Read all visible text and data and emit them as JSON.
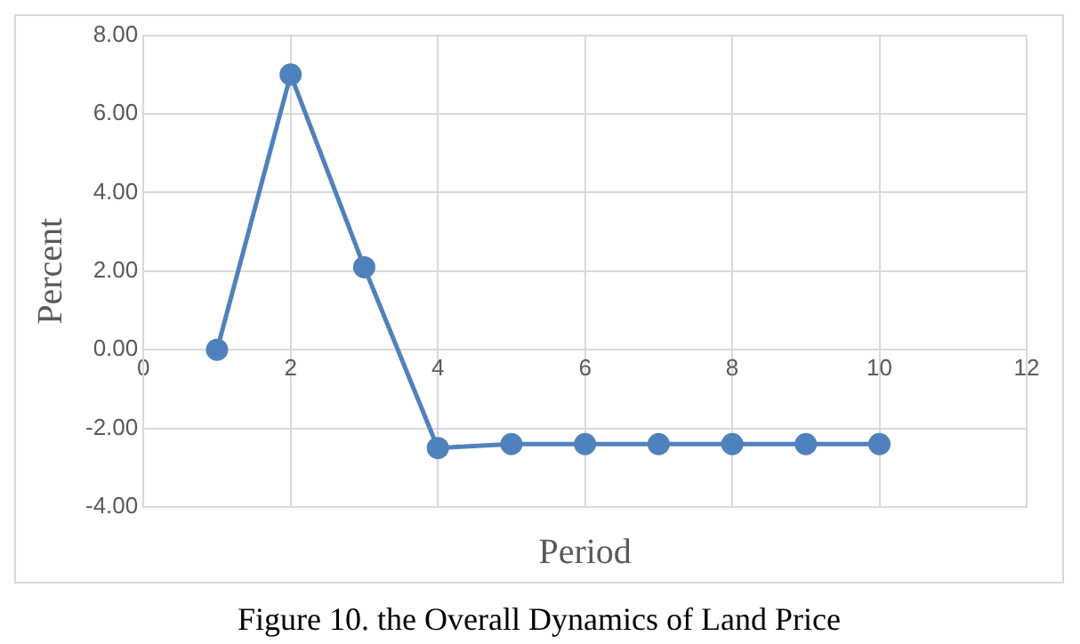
{
  "chart_data": {
    "type": "line",
    "xlabel": "Period",
    "ylabel": "Percent",
    "x": [
      1,
      2,
      3,
      4,
      5,
      6,
      7,
      8,
      9,
      10
    ],
    "series": [
      {
        "color": "#4f81bd",
        "values": [
          0,
          7.0,
          2.1,
          -2.5,
          -2.4,
          -2.4,
          -2.4,
          -2.4,
          -2.4,
          -2.4
        ]
      }
    ],
    "xlim": [
      0,
      12
    ],
    "xticks": [
      0,
      2,
      4,
      6,
      8,
      10,
      12
    ],
    "ylim": [
      -4,
      8
    ],
    "yticks": [
      {
        "value": -4,
        "label": "-4.00"
      },
      {
        "value": -2,
        "label": "-2.00"
      },
      {
        "value": 0,
        "label": "0.00"
      },
      {
        "value": 2,
        "label": "2.00"
      },
      {
        "value": 4,
        "label": "4.00"
      },
      {
        "value": 6,
        "label": "6.00"
      },
      {
        "value": 8,
        "label": "8.00"
      }
    ],
    "grid": true,
    "marker": "circle",
    "line_style": "solid",
    "annotations": [
      "Figure 10. the Overall Dynamics of Land Price"
    ]
  }
}
